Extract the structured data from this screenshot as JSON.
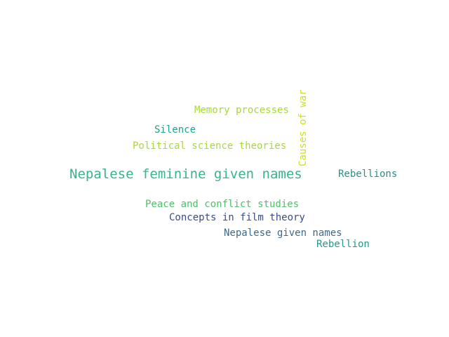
{
  "word_cloud": {
    "words": [
      {
        "text": "Nepalese feminine given names",
        "color": "#3bb38a",
        "orientation": "horizontal"
      },
      {
        "text": "Causes of war",
        "color": "#cde11d",
        "orientation": "vertical"
      },
      {
        "text": "Memory processes",
        "color": "#a8d93c",
        "orientation": "horizontal"
      },
      {
        "text": "Silence",
        "color": "#25a08a",
        "orientation": "horizontal"
      },
      {
        "text": "Political science theories",
        "color": "#a8d93c",
        "orientation": "horizontal"
      },
      {
        "text": "Rebellions",
        "color": "#26908c",
        "orientation": "horizontal"
      },
      {
        "text": "Peace and conflict studies",
        "color": "#4fc06b",
        "orientation": "horizontal"
      },
      {
        "text": "Concepts in film theory",
        "color": "#3a4c8a",
        "orientation": "horizontal"
      },
      {
        "text": "Nepalese given names",
        "color": "#3b6a8e",
        "orientation": "horizontal"
      },
      {
        "text": "Rebellion",
        "color": "#23988b",
        "orientation": "horizontal"
      }
    ]
  }
}
